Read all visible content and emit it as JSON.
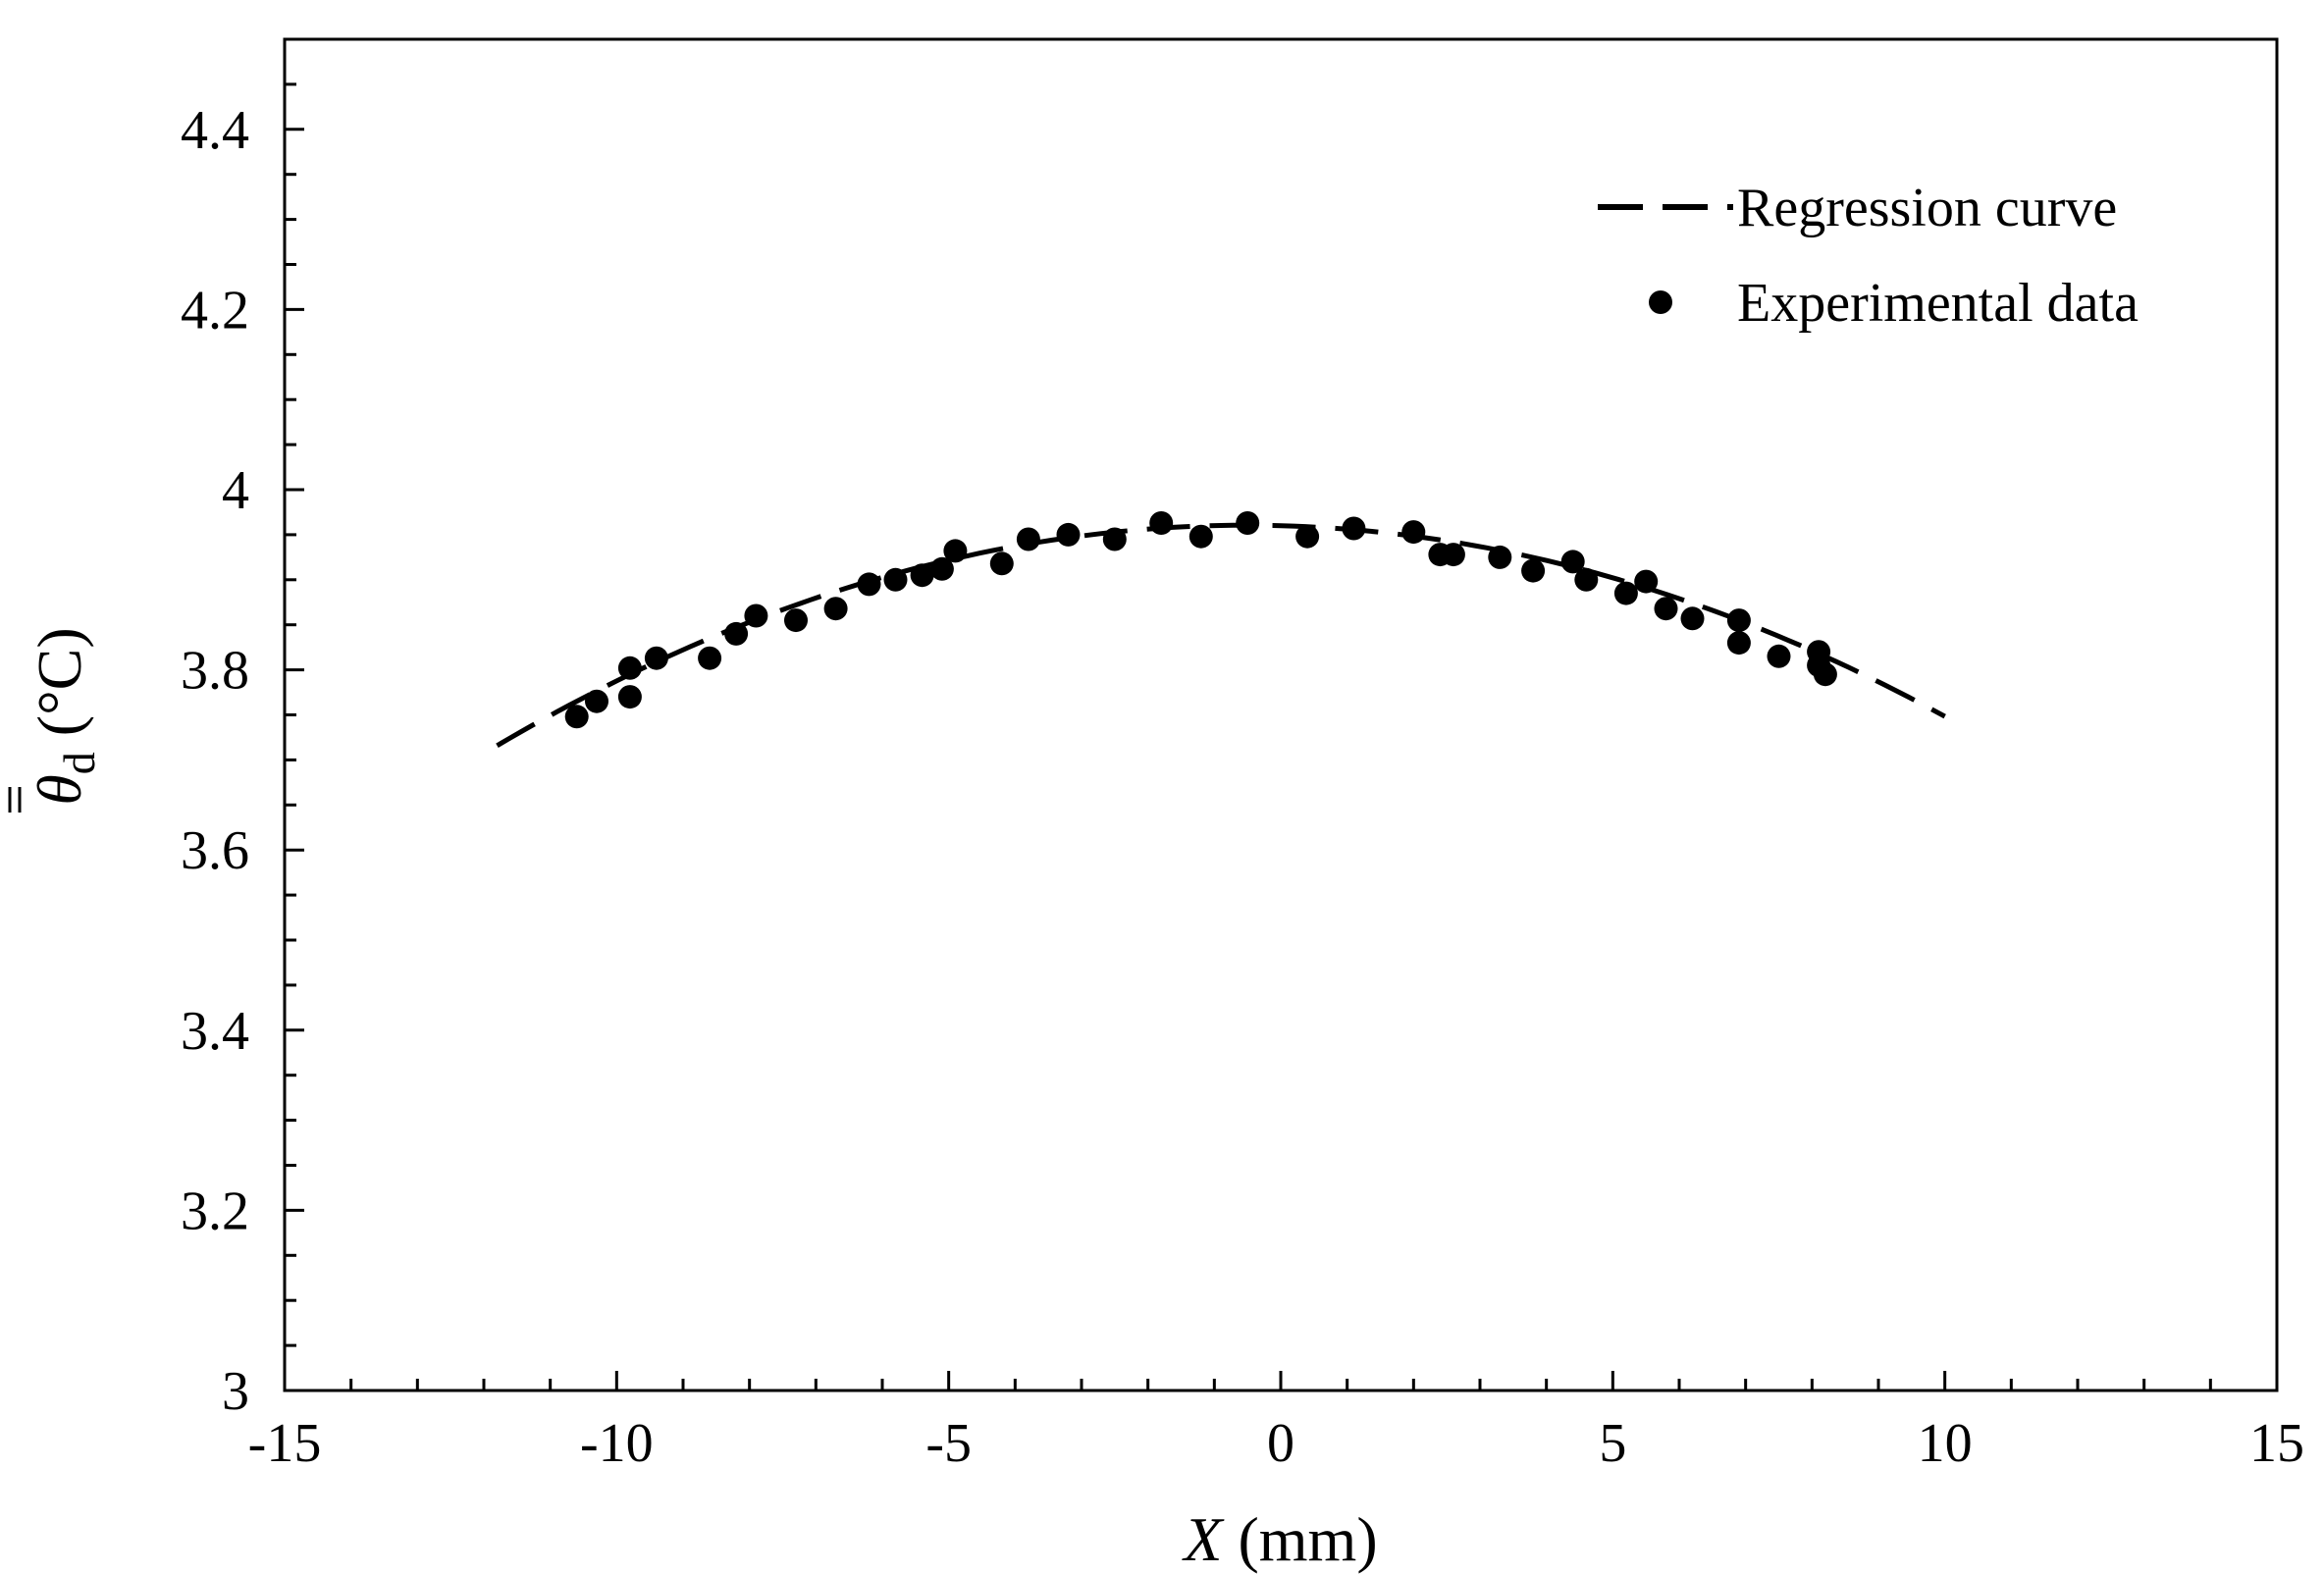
{
  "chart_data": {
    "type": "scatter",
    "title": "",
    "xlabel": {
      "var": "X",
      "unit": " (mm)"
    },
    "ylabel": {
      "var": "θ",
      "sub": "d",
      "unit": " (°C)"
    },
    "xlim": [
      -15,
      15
    ],
    "ylim": [
      3,
      4.5
    ],
    "xticks": [
      -15,
      -10,
      -5,
      0,
      5,
      10,
      15
    ],
    "xtick_labels": [
      "-15",
      "-10",
      "-5",
      "0",
      "5",
      "10",
      "15"
    ],
    "yticks": [
      3,
      3.2,
      3.4,
      3.6,
      3.8,
      4,
      4.2,
      4.4
    ],
    "ytick_labels": [
      "3",
      "3.2",
      "3.4",
      "3.6",
      "3.8",
      "4",
      "4.2",
      "4.4"
    ],
    "grid": false,
    "legend_position": "top-right",
    "legend": [
      {
        "label": "Regression curve",
        "style": "dashed-line"
      },
      {
        "label": "Experimental data",
        "style": "filled-circle"
      }
    ],
    "series": [
      {
        "name": "Regression curve",
        "kind": "line",
        "model": "quadratic",
        "coefficients": {
          "a": -0.00192,
          "b": -0.00197,
          "c": 3.96
        },
        "x_range": [
          -11.8,
          10
        ]
      },
      {
        "name": "Experimental data",
        "kind": "scatter",
        "points": [
          [
            -10.6,
            3.748
          ],
          [
            -10.3,
            3.765
          ],
          [
            -9.8,
            3.802
          ],
          [
            -9.8,
            3.77
          ],
          [
            -9.4,
            3.813
          ],
          [
            -8.6,
            3.813
          ],
          [
            -8.2,
            3.84
          ],
          [
            -7.9,
            3.86
          ],
          [
            -7.3,
            3.855
          ],
          [
            -6.7,
            3.868
          ],
          [
            -6.2,
            3.895
          ],
          [
            -5.8,
            3.9
          ],
          [
            -5.4,
            3.905
          ],
          [
            -5.1,
            3.912
          ],
          [
            -4.9,
            3.932
          ],
          [
            -4.2,
            3.918
          ],
          [
            -3.8,
            3.945
          ],
          [
            -3.2,
            3.95
          ],
          [
            -2.5,
            3.945
          ],
          [
            -1.8,
            3.963
          ],
          [
            -1.2,
            3.948
          ],
          [
            -0.5,
            3.963
          ],
          [
            0.4,
            3.948
          ],
          [
            1.1,
            3.957
          ],
          [
            2.0,
            3.953
          ],
          [
            2.4,
            3.928
          ],
          [
            2.6,
            3.928
          ],
          [
            3.3,
            3.925
          ],
          [
            3.8,
            3.91
          ],
          [
            4.4,
            3.92
          ],
          [
            4.6,
            3.9
          ],
          [
            5.2,
            3.885
          ],
          [
            5.5,
            3.898
          ],
          [
            5.8,
            3.868
          ],
          [
            6.2,
            3.857
          ],
          [
            6.9,
            3.855
          ],
          [
            6.9,
            3.83
          ],
          [
            7.5,
            3.815
          ],
          [
            8.1,
            3.82
          ],
          [
            8.1,
            3.805
          ],
          [
            8.2,
            3.795
          ]
        ]
      }
    ]
  }
}
